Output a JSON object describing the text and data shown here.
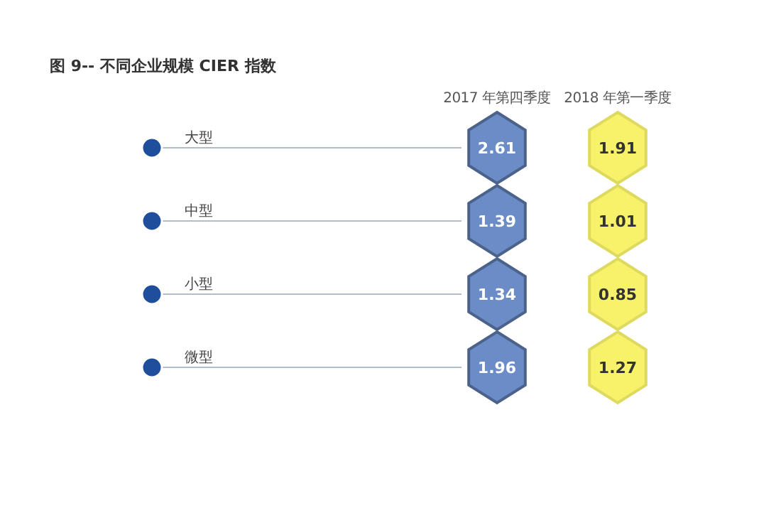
{
  "chart_data": {
    "type": "other",
    "title": "图 9-- 不同企业规模 CIER 指数",
    "categories": [
      "大型",
      "中型",
      "小型",
      "微型"
    ],
    "series": [
      {
        "name": "2017 年第四季度",
        "color": "#6b8cc6",
        "values": [
          2.61,
          1.39,
          1.34,
          1.96
        ]
      },
      {
        "name": "2018 年第一季度",
        "color": "#f7f26a",
        "values": [
          1.91,
          1.01,
          0.85,
          1.27
        ]
      }
    ],
    "data_labels": true
  }
}
